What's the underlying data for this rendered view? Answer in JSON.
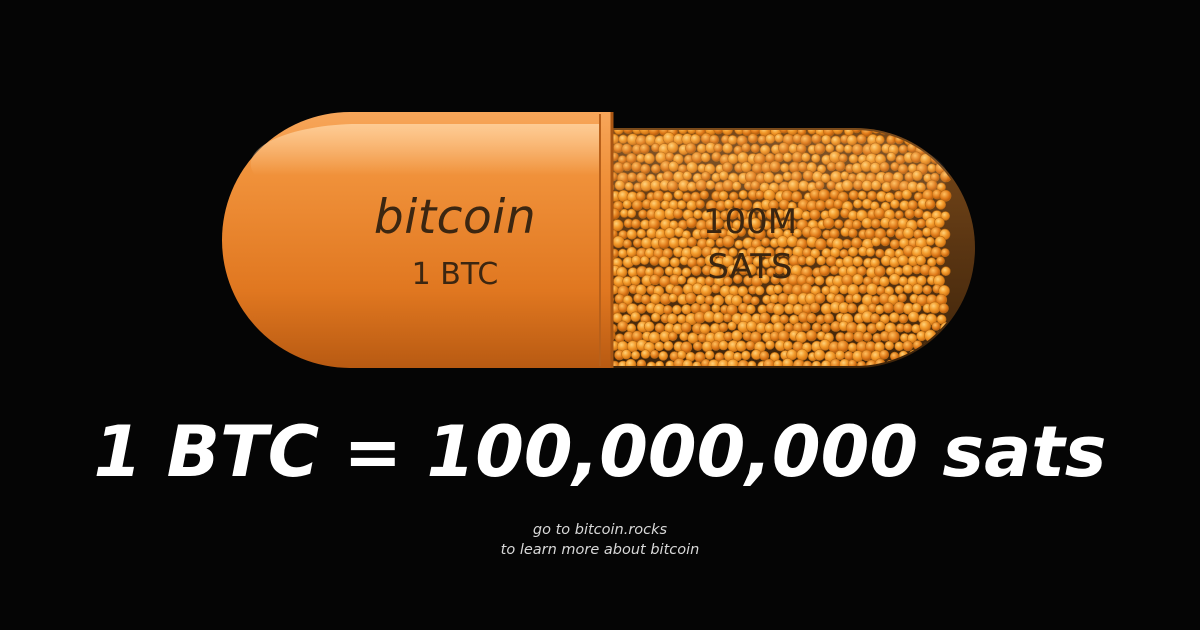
{
  "capsule": {
    "left_half": {
      "brand": "bitcoin",
      "unit": "1 BTC",
      "color": "#e8842a"
    },
    "right_half": {
      "line_1": "100M",
      "line_2": "SATS",
      "bead_color": "#f08a1e",
      "shell_color": "#5a3512"
    }
  },
  "headline": "1 BTC = 100,000,000 sats",
  "footer": {
    "line_1": "go to bitcoin.rocks",
    "line_2": "to learn more about bitcoin"
  },
  "colors": {
    "background": "#050505",
    "headline": "#ffffff",
    "footer": "#d8d8d8"
  }
}
